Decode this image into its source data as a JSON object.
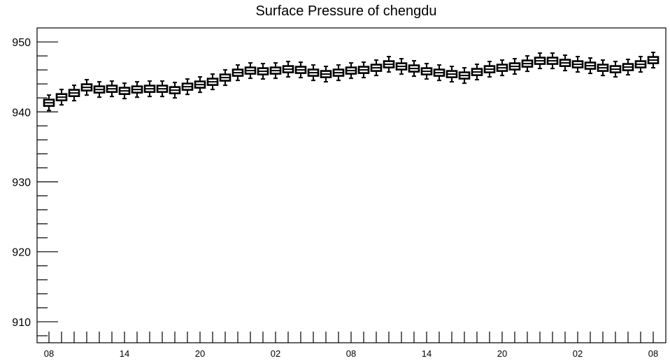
{
  "chart_data": {
    "type": "box",
    "title": "Surface Pressure of chengdu",
    "xlabel": "",
    "ylabel": "",
    "ylim": [
      907,
      952
    ],
    "y_ticks": [
      910,
      920,
      930,
      940,
      950
    ],
    "y_minor_step": 2,
    "x_tick_labels": [
      "08",
      "14",
      "20",
      "02",
      "08",
      "14",
      "20",
      "02",
      "08"
    ],
    "x_label_hour_offsets": [
      0,
      6,
      12,
      18,
      24,
      30,
      36,
      42,
      48
    ],
    "hour_offsets": [
      0,
      1,
      2,
      3,
      4,
      5,
      6,
      7,
      8,
      9,
      10,
      11,
      12,
      13,
      14,
      15,
      16,
      17,
      18,
      19,
      20,
      21,
      22,
      23,
      24,
      25,
      26,
      27,
      28,
      29,
      30,
      31,
      32,
      33,
      34,
      35,
      36,
      37,
      38,
      39,
      40,
      41,
      42,
      43,
      44,
      45,
      46,
      47,
      48
    ],
    "medians": [
      941.3,
      942.1,
      942.7,
      943.5,
      943.2,
      943.3,
      943.0,
      943.2,
      943.3,
      943.3,
      943.1,
      943.6,
      943.9,
      944.3,
      944.9,
      945.6,
      945.9,
      945.8,
      945.9,
      946.1,
      946.0,
      945.6,
      945.4,
      945.6,
      945.9,
      946.0,
      946.3,
      946.8,
      946.5,
      946.2,
      945.8,
      945.6,
      945.4,
      945.2,
      945.7,
      946.1,
      946.3,
      946.5,
      946.9,
      947.3,
      947.3,
      947.0,
      946.8,
      946.6,
      946.3,
      946.1,
      946.4,
      946.8,
      947.4
    ],
    "spread": {
      "box_half": 0.45,
      "whisker_half": 1.1
    },
    "grid": false,
    "legend": "none"
  }
}
